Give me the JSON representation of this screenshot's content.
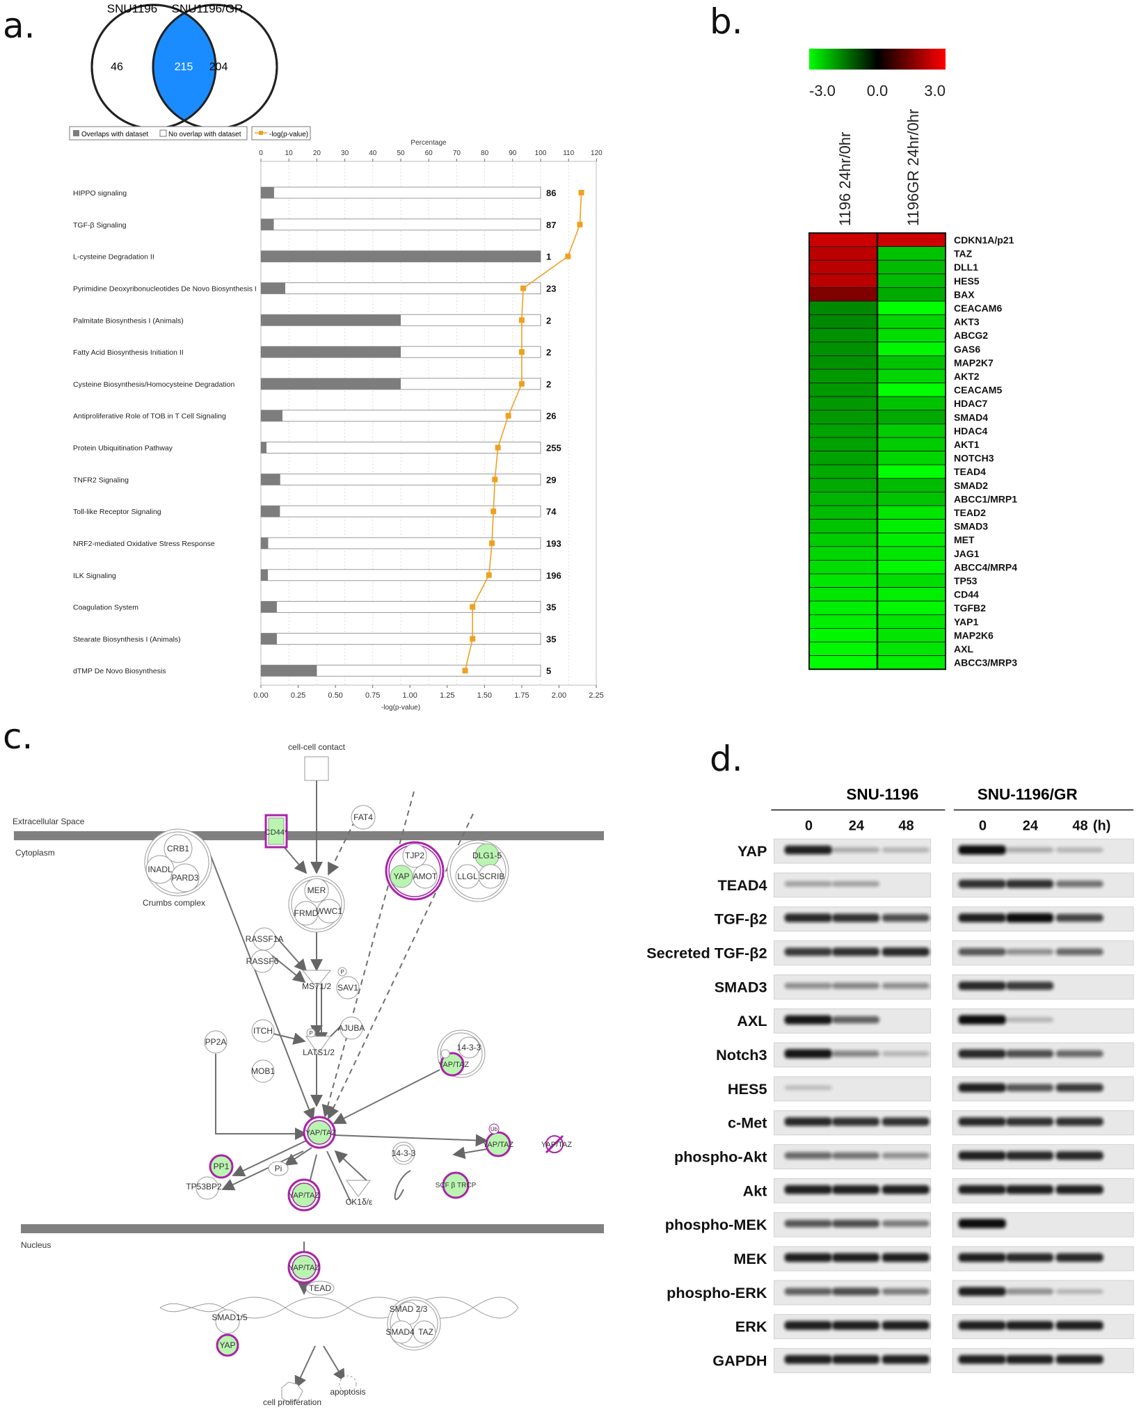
{
  "panel_a": {
    "letter": "a.",
    "venn": {
      "left_label": "SNU1196",
      "right_label": "SNU1196/GR",
      "left_only": "46",
      "overlap": "215",
      "right_only": "204"
    },
    "legend": {
      "overlap": "Overlaps with dataset",
      "no_overlap": "No overlap with dataset",
      "pvalue": "-log(p-value)"
    },
    "colors": {
      "bar": "#7d7d7d",
      "line": "#f0a020",
      "venn_overlap": "#1a8cff"
    }
  },
  "panel_b": {
    "letter": "b.",
    "scale_labels": [
      "-3.0",
      "0.0",
      "3.0"
    ],
    "columns": [
      "1196  24hr/0hr",
      "1196GR  24hr/0hr"
    ],
    "genes": [
      "CDKN1A/p21",
      "TAZ",
      "DLL1",
      "HES5",
      "BAX",
      "CEACAM6",
      "AKT3",
      "ABCG2",
      "GAS6",
      "MAP2K7",
      "AKT2",
      "CEACAM5",
      "HDAC7",
      "SMAD4",
      "HDAC4",
      "AKT1",
      "NOTCH3",
      "TEAD4",
      "SMAD2",
      "ABCC1/MRP1",
      "TEAD2",
      "SMAD3",
      "MET",
      "JAG1",
      "ABCC4/MRP4",
      "TP53",
      "CD44",
      "TGFB2",
      "YAP1",
      "MAP2K6",
      "AXL",
      "ABCC3/MRP3"
    ],
    "values_1196": [
      2.4,
      2.2,
      2.2,
      2.2,
      1.5,
      -1.6,
      -1.6,
      -1.7,
      -1.7,
      -1.7,
      -1.8,
      -1.8,
      -1.8,
      -1.8,
      -1.9,
      -1.9,
      -1.9,
      -2.0,
      -2.0,
      -2.1,
      -2.2,
      -2.3,
      -2.4,
      -2.5,
      -2.6,
      -2.7,
      -2.7,
      -2.8,
      -2.8,
      -2.9,
      -2.9,
      -3.0
    ],
    "values_1196GR": [
      2.4,
      -2.3,
      -2.2,
      -2.2,
      -2.0,
      -3.0,
      -2.5,
      -2.6,
      -2.9,
      -2.3,
      -2.5,
      -3.0,
      -2.3,
      -2.0,
      -2.4,
      -2.4,
      -2.5,
      -3.0,
      -2.2,
      -2.3,
      -2.7,
      -2.8,
      -2.8,
      -2.7,
      -2.9,
      -2.6,
      -2.8,
      -2.9,
      -2.7,
      -2.7,
      -2.7,
      -2.8
    ]
  },
  "panel_c": {
    "letter": "c.",
    "compartments": {
      "extracellular": "Extracellular Space",
      "cytoplasm": "Cytoplasm",
      "nucleus": "Nucleus"
    },
    "nodes": {
      "cell_contact": "cell-cell contact",
      "crb1": "CRB1",
      "inadl": "INADL",
      "pard3": "PARD3",
      "crumbs": "Crumbs complex",
      "cd44": "CD44*",
      "fat4": "FAT4",
      "tjp2": "TJP2",
      "yap": "YAP",
      "amot": "AMOT",
      "dlg": "DLG1-5",
      "llgl": "LLGL",
      "scrib": "SCRIB",
      "mer": "MER",
      "frmd": "FRMD",
      "wwc1": "WWC1",
      "rassf1a": "RASSF1A",
      "rassf6": "RASSF6",
      "mst": "MST1/2",
      "sav1": "SAV1",
      "p": "P",
      "pp2a": "PP2A",
      "itch": "ITCH",
      "ajuba": "AJUBA",
      "lats": "LATS1/2",
      "mob1": "MOB1",
      "yaptaz": "YAP/TAZ",
      "f1433": "14-3-3",
      "pp1": "PP1",
      "tp53bp2": "TP53BP2",
      "pi": "Pi",
      "ck1": "CK1δ/ε",
      "ub": "Ub",
      "scf": "SCF β TRCP",
      "tead": "TEAD",
      "smad15": "SMAD1/5",
      "smad23": "SMAD 2/3",
      "smad4": "SMAD4",
      "taz": "TAZ",
      "prolif": "cell proliferation",
      "apoptosis": "apoptosis"
    }
  },
  "panel_d": {
    "letter": "d.",
    "groups": [
      "SNU-1196",
      "SNU-1196/GR"
    ],
    "timepoints": [
      "0",
      "24",
      "48"
    ],
    "time_unit": "(h)",
    "rows": [
      {
        "label": "YAP",
        "a": [
          0.9,
          0.15,
          0.1
        ],
        "b": [
          1.0,
          0.15,
          0.1
        ]
      },
      {
        "label": "TEAD4",
        "a": [
          0.2,
          0.2,
          0.0
        ],
        "b": [
          0.8,
          0.8,
          0.45
        ]
      },
      {
        "label": "TGF-β2",
        "a": [
          0.85,
          0.8,
          0.65
        ],
        "b": [
          0.9,
          1.0,
          0.7
        ]
      },
      {
        "label": "Secreted TGF-β2",
        "a": [
          0.75,
          0.8,
          0.85
        ],
        "b": [
          0.6,
          0.3,
          0.5
        ]
      },
      {
        "label": "SMAD3",
        "a": [
          0.3,
          0.35,
          0.3
        ],
        "b": [
          0.85,
          0.75,
          0.0
        ]
      },
      {
        "label": "AXL",
        "a": [
          0.95,
          0.55,
          0.0
        ],
        "b": [
          1.0,
          0.1,
          0.0
        ]
      },
      {
        "label": "Notch3",
        "a": [
          0.95,
          0.35,
          0.1
        ],
        "b": [
          0.85,
          0.65,
          0.5
        ]
      },
      {
        "label": "HES5",
        "a": [
          0.05,
          0.0,
          0.0
        ],
        "b": [
          0.9,
          0.6,
          0.75
        ]
      },
      {
        "label": "c-Met",
        "a": [
          0.85,
          0.8,
          0.8
        ],
        "b": [
          0.85,
          0.8,
          0.8
        ]
      },
      {
        "label": "phospho-Akt",
        "a": [
          0.5,
          0.45,
          0.3
        ],
        "b": [
          0.9,
          0.85,
          0.85
        ]
      },
      {
        "label": "Akt",
        "a": [
          0.9,
          0.9,
          0.9
        ],
        "b": [
          0.9,
          0.9,
          0.9
        ]
      },
      {
        "label": "phospho-MEK",
        "a": [
          0.6,
          0.65,
          0.4
        ],
        "b": [
          1.0,
          0.0,
          0.0
        ]
      },
      {
        "label": "MEK",
        "a": [
          0.9,
          0.9,
          0.9
        ],
        "b": [
          0.9,
          0.85,
          0.85
        ]
      },
      {
        "label": "phospho-ERK",
        "a": [
          0.55,
          0.65,
          0.4
        ],
        "b": [
          0.9,
          0.3,
          0.1
        ]
      },
      {
        "label": "ERK",
        "a": [
          0.9,
          0.9,
          0.9
        ],
        "b": [
          0.9,
          0.9,
          0.9
        ]
      },
      {
        "label": "GAPDH",
        "a": [
          0.9,
          0.9,
          0.9
        ],
        "b": [
          0.9,
          0.9,
          0.9
        ]
      }
    ]
  },
  "chart_data": {
    "type": "bar",
    "title": "",
    "xlabel": "-log(p-value)",
    "x2label": "Percentage",
    "xlim": [
      0,
      2.25
    ],
    "x2lim": [
      0,
      120
    ],
    "xticks": [
      "0.00",
      "0.25",
      "0.50",
      "0.75",
      "1.00",
      "1.25",
      "1.50",
      "1.75",
      "2.00",
      "2.25"
    ],
    "x2ticks": [
      "0",
      "10",
      "20",
      "30",
      "40",
      "50",
      "60",
      "70",
      "80",
      "90",
      "100",
      "110",
      "120"
    ],
    "categories": [
      "HIPPO signaling",
      "TGF-β Signaling",
      "L-cysteine Degradation II",
      "Pyrimidine Deoxyribonucleotides De Novo Biosynthesis I",
      "Palmitate Biosynthesis I (Animals)",
      "Fatty Acid Biosynthesis Initiation II",
      "Cysteine Biosynthesis/Homocysteine Degradation",
      "Antiproliferative Role of TOB in T Cell Signaling",
      "Protein Ubiquitination Pathway",
      "TNFR2 Signaling",
      "Toll-like Receptor Signaling",
      "NRF2-mediated Oxidative Stress Response",
      "ILK Signaling",
      "Coagulation System",
      "Stearate Biosynthesis I (Animals)",
      "dTMP De Novo Biosynthesis"
    ],
    "totals": [
      "86",
      "87",
      "1",
      "23",
      "2",
      "2",
      "2",
      "26",
      "255",
      "29",
      "74",
      "193",
      "196",
      "35",
      "35",
      "5"
    ],
    "series": [
      {
        "name": "Overlaps with dataset",
        "values": [
          4.7,
          4.6,
          100,
          8.7,
          50,
          50,
          50,
          7.7,
          2.0,
          6.9,
          6.8,
          2.6,
          2.5,
          5.7,
          5.7,
          20
        ]
      },
      {
        "name": "No overlap with dataset",
        "values": [
          95.3,
          95.4,
          0,
          91.3,
          50,
          50,
          50,
          92.3,
          98.0,
          93.1,
          93.2,
          97.4,
          97.5,
          94.3,
          94.3,
          80
        ]
      },
      {
        "name": "-log(p-value)",
        "values": [
          2.15,
          2.14,
          2.06,
          1.76,
          1.75,
          1.75,
          1.75,
          1.66,
          1.59,
          1.57,
          1.56,
          1.55,
          1.53,
          1.42,
          1.42,
          1.37
        ]
      }
    ]
  }
}
